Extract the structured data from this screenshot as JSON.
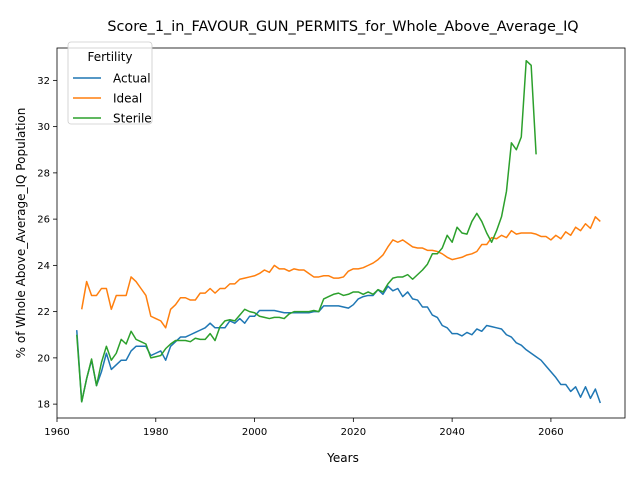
{
  "chart_data": {
    "type": "line",
    "title": "Score_1_in_FAVOUR_GUN_PERMITS_for_Whole_Above_Average_IQ",
    "xlabel": "Years",
    "ylabel": "% of Whole Above_Average_IQ Population",
    "xlim": [
      1960,
      2075
    ],
    "ylim": [
      17.4,
      33.4
    ],
    "xticks": [
      1960,
      1980,
      2000,
      2020,
      2040,
      2060
    ],
    "yticks": [
      18,
      20,
      22,
      24,
      26,
      28,
      30,
      32
    ],
    "grid": false,
    "legend": {
      "title": "Fertility",
      "placement": "top-left"
    },
    "series": [
      {
        "name": "Actual",
        "color": "#1f77b4",
        "x": [
          1964,
          1965,
          1966,
          1967,
          1968,
          1969,
          1970,
          1971,
          1972,
          1973,
          1974,
          1975,
          1976,
          1977,
          1978,
          1979,
          1980,
          1981,
          1982,
          1983,
          1984,
          1985,
          1986,
          1987,
          1988,
          1989,
          1990,
          1991,
          1992,
          1993,
          1994,
          1995,
          1996,
          1997,
          1998,
          1999,
          2000,
          2001,
          2002,
          2003,
          2004,
          2005,
          2006,
          2007,
          2008,
          2009,
          2010,
          2011,
          2012,
          2013,
          2014,
          2015,
          2016,
          2017,
          2018,
          2019,
          2020,
          2021,
          2022,
          2023,
          2024,
          2025,
          2026,
          2027,
          2028,
          2029,
          2030,
          2031,
          2032,
          2033,
          2034,
          2035,
          2036,
          2037,
          2038,
          2039,
          2040,
          2041,
          2042,
          2043,
          2044,
          2045,
          2046,
          2047,
          2048,
          2049,
          2050,
          2051,
          2052,
          2053,
          2054,
          2055,
          2056,
          2057,
          2058,
          2059,
          2060,
          2061,
          2062,
          2063,
          2064,
          2065,
          2066,
          2067,
          2068,
          2069,
          2070
        ],
        "values": [
          21.2,
          18.1,
          19.1,
          19.9,
          18.8,
          19.4,
          20.2,
          19.5,
          19.7,
          19.9,
          19.9,
          20.3,
          20.5,
          20.5,
          20.5,
          20.1,
          20.2,
          20.3,
          19.9,
          20.5,
          20.7,
          20.9,
          20.9,
          21.0,
          21.1,
          21.2,
          21.3,
          21.5,
          21.3,
          21.3,
          21.3,
          21.6,
          21.5,
          21.7,
          21.5,
          21.8,
          21.8,
          22.05,
          22.05,
          22.05,
          22.05,
          22.0,
          21.95,
          21.95,
          21.95,
          21.95,
          21.95,
          21.95,
          22.0,
          22.0,
          22.25,
          22.25,
          22.25,
          22.25,
          22.2,
          22.15,
          22.3,
          22.55,
          22.65,
          22.7,
          22.7,
          22.95,
          22.75,
          23.1,
          22.9,
          23.0,
          22.65,
          22.85,
          22.55,
          22.5,
          22.2,
          22.2,
          21.85,
          21.75,
          21.4,
          21.3,
          21.05,
          21.05,
          20.95,
          21.1,
          21.0,
          21.25,
          21.15,
          21.4,
          21.35,
          21.3,
          21.25,
          21.0,
          20.9,
          20.65,
          20.55,
          20.35,
          20.2,
          20.05,
          19.9,
          19.65,
          19.4,
          19.15,
          18.85,
          18.85,
          18.55,
          18.75,
          18.3,
          18.75,
          18.25,
          18.65,
          18.05
        ]
      },
      {
        "name": "Ideal",
        "color": "#ff7f0e",
        "x": [
          1965,
          1966,
          1967,
          1968,
          1969,
          1970,
          1971,
          1972,
          1973,
          1974,
          1975,
          1976,
          1977,
          1978,
          1979,
          1980,
          1981,
          1982,
          1983,
          1984,
          1985,
          1986,
          1987,
          1988,
          1989,
          1990,
          1991,
          1992,
          1993,
          1994,
          1995,
          1996,
          1997,
          1998,
          1999,
          2000,
          2001,
          2002,
          2003,
          2004,
          2005,
          2006,
          2007,
          2008,
          2009,
          2010,
          2011,
          2012,
          2013,
          2014,
          2015,
          2016,
          2017,
          2018,
          2019,
          2020,
          2021,
          2022,
          2023,
          2024,
          2025,
          2026,
          2027,
          2028,
          2029,
          2030,
          2031,
          2032,
          2033,
          2034,
          2035,
          2036,
          2037,
          2038,
          2039,
          2040,
          2041,
          2042,
          2043,
          2044,
          2045,
          2046,
          2047,
          2048,
          2049,
          2050,
          2051,
          2052,
          2053,
          2054,
          2055,
          2056,
          2057,
          2058,
          2059,
          2060,
          2061,
          2062,
          2063,
          2064,
          2065,
          2066,
          2067,
          2068,
          2069,
          2070
        ],
        "values": [
          22.1,
          23.3,
          22.7,
          22.7,
          23.0,
          23.0,
          22.1,
          22.7,
          22.7,
          22.7,
          23.5,
          23.3,
          23.0,
          22.7,
          21.8,
          21.7,
          21.6,
          21.3,
          22.1,
          22.3,
          22.6,
          22.6,
          22.5,
          22.5,
          22.8,
          22.8,
          23.0,
          22.8,
          23.0,
          23.0,
          23.2,
          23.2,
          23.4,
          23.45,
          23.5,
          23.55,
          23.65,
          23.8,
          23.7,
          24.0,
          23.85,
          23.85,
          23.75,
          23.85,
          23.8,
          23.8,
          23.65,
          23.5,
          23.5,
          23.55,
          23.55,
          23.45,
          23.45,
          23.5,
          23.75,
          23.85,
          23.85,
          23.9,
          24.0,
          24.1,
          24.25,
          24.45,
          24.8,
          25.1,
          25.0,
          25.1,
          24.95,
          24.8,
          24.75,
          24.75,
          24.65,
          24.65,
          24.6,
          24.5,
          24.35,
          24.25,
          24.3,
          24.35,
          24.45,
          24.5,
          24.6,
          24.9,
          24.9,
          25.2,
          25.15,
          25.3,
          25.2,
          25.5,
          25.35,
          25.4,
          25.4,
          25.4,
          25.35,
          25.25,
          25.25,
          25.1,
          25.3,
          25.15,
          25.45,
          25.3,
          25.65,
          25.5,
          25.8,
          25.6,
          26.1,
          25.9
        ]
      },
      {
        "name": "Sterile",
        "color": "#2ca02c",
        "x": [
          1964,
          1965,
          1966,
          1967,
          1968,
          1969,
          1970,
          1971,
          1972,
          1973,
          1974,
          1975,
          1976,
          1977,
          1978,
          1979,
          1980,
          1981,
          1982,
          1983,
          1984,
          1985,
          1986,
          1987,
          1988,
          1989,
          1990,
          1991,
          1992,
          1993,
          1994,
          1995,
          1996,
          1997,
          1998,
          1999,
          2000,
          2001,
          2002,
          2003,
          2004,
          2005,
          2006,
          2007,
          2008,
          2009,
          2010,
          2011,
          2012,
          2013,
          2014,
          2015,
          2016,
          2017,
          2018,
          2019,
          2020,
          2021,
          2022,
          2023,
          2024,
          2025,
          2026,
          2027,
          2028,
          2029,
          2030,
          2031,
          2032,
          2033,
          2034,
          2035,
          2036,
          2037,
          2038,
          2039,
          2040,
          2041,
          2042,
          2043,
          2044,
          2045,
          2046,
          2047,
          2048,
          2049,
          2050,
          2051,
          2052,
          2053,
          2054,
          2055,
          2056,
          2057
        ],
        "values": [
          21.0,
          18.1,
          19.1,
          19.95,
          18.8,
          19.8,
          20.5,
          19.9,
          20.2,
          20.8,
          20.6,
          21.15,
          20.8,
          20.7,
          20.6,
          20.0,
          20.05,
          20.1,
          20.4,
          20.6,
          20.75,
          20.75,
          20.75,
          20.7,
          20.85,
          20.8,
          20.8,
          21.05,
          20.75,
          21.35,
          21.6,
          21.65,
          21.6,
          21.85,
          22.1,
          22.0,
          21.95,
          21.8,
          21.75,
          21.7,
          21.75,
          21.75,
          21.7,
          21.9,
          22.0,
          22.0,
          22.0,
          22.0,
          22.05,
          22.0,
          22.55,
          22.65,
          22.75,
          22.8,
          22.7,
          22.75,
          22.85,
          22.85,
          22.75,
          22.85,
          22.75,
          22.95,
          22.85,
          23.2,
          23.45,
          23.5,
          23.5,
          23.6,
          23.4,
          23.6,
          23.8,
          24.05,
          24.5,
          24.5,
          24.75,
          25.3,
          25.0,
          25.65,
          25.4,
          25.35,
          25.9,
          26.25,
          25.9,
          25.4,
          25.0,
          25.5,
          26.1,
          27.2,
          29.3,
          29.0,
          29.55,
          32.85,
          32.65,
          28.8
        ]
      }
    ]
  }
}
